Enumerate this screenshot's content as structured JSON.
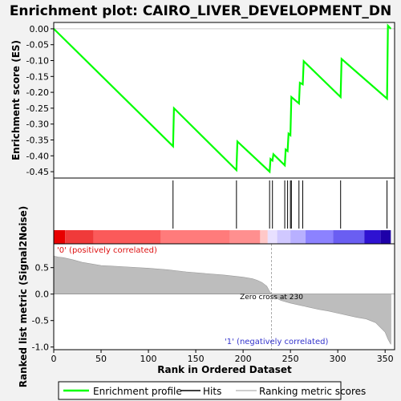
{
  "chart_data": {
    "type": "line",
    "title": "Enrichment plot: CAIRO_LIVER_DEVELOPMENT_DN",
    "xlabel": "Rank in Ordered Dataset",
    "top_ylabel": "Enrichment score (ES)",
    "bottom_ylabel": "Ranked list metric (Signal2Noise)",
    "xlim": [
      0,
      360
    ],
    "top_ylim": [
      -0.47,
      0.02
    ],
    "bottom_ylim": [
      -1.05,
      0.95
    ],
    "x_ticks": [
      0,
      50,
      100,
      150,
      200,
      250,
      300,
      350
    ],
    "top_y_ticks": [
      0.0,
      -0.05,
      -0.1,
      -0.15,
      -0.2,
      -0.25,
      -0.3,
      -0.35,
      -0.4,
      -0.45
    ],
    "top_y_tick_labels": [
      "0.00",
      "-0.05",
      "-0.10",
      "-0.15",
      "-0.20",
      "-0.25",
      "-0.30",
      "-0.35",
      "-0.40",
      "-0.45"
    ],
    "bottom_y_ticks": [
      0.5,
      0.0,
      -0.5,
      -1.0
    ],
    "bottom_y_tick_labels": [
      "0.5",
      "0.0",
      "-0.5",
      "-1.0"
    ],
    "enrichment_profile": {
      "name": "Enrichment profile",
      "color": "#00ff00",
      "x": [
        0,
        126,
        127,
        193,
        194,
        228,
        229,
        231,
        232,
        244,
        245,
        247,
        248,
        250,
        251,
        259,
        260,
        263,
        264,
        303,
        304,
        352,
        353,
        356
      ],
      "y": [
        0.0,
        -0.37,
        -0.25,
        -0.445,
        -0.355,
        -0.45,
        -0.41,
        -0.415,
        -0.395,
        -0.43,
        -0.38,
        -0.385,
        -0.33,
        -0.335,
        -0.215,
        -0.235,
        -0.17,
        -0.175,
        -0.102,
        -0.215,
        -0.095,
        -0.22,
        0.01,
        0.0
      ]
    },
    "hits": {
      "name": "Hits",
      "x": [
        126,
        193,
        228,
        231,
        244,
        247,
        250,
        251,
        259,
        263,
        303,
        352
      ]
    },
    "ranking_metric": {
      "name": "Ranking metric scores",
      "x": [
        0,
        5,
        10,
        20,
        30,
        40,
        50,
        60,
        80,
        100,
        120,
        140,
        160,
        180,
        200,
        210,
        215,
        220,
        225,
        228,
        230,
        232,
        240,
        250,
        260,
        270,
        280,
        290,
        300,
        310,
        320,
        330,
        340,
        345,
        350,
        353,
        356
      ],
      "y": [
        0.72,
        0.7,
        0.69,
        0.65,
        0.6,
        0.57,
        0.54,
        0.53,
        0.51,
        0.49,
        0.46,
        0.42,
        0.39,
        0.36,
        0.32,
        0.29,
        0.26,
        0.22,
        0.15,
        0.05,
        0.0,
        -0.05,
        -0.12,
        -0.17,
        -0.21,
        -0.25,
        -0.29,
        -0.32,
        -0.36,
        -0.4,
        -0.44,
        -0.47,
        -0.54,
        -0.63,
        -0.72,
        -0.85,
        -0.95
      ]
    },
    "zero_cross": 230,
    "annotations": {
      "positive": "'0' (positively correlated)",
      "negative": "'1' (negatively correlated)",
      "zero_cross": "Zero cross at 230"
    },
    "color_bar": {
      "segments": [
        {
          "from": 0,
          "to": 12,
          "color": "#e80000"
        },
        {
          "from": 12,
          "to": 42,
          "color": "#f03a3a"
        },
        {
          "from": 42,
          "to": 113,
          "color": "#fb5a5a"
        },
        {
          "from": 113,
          "to": 186,
          "color": "#ff7b7b"
        },
        {
          "from": 186,
          "to": 218,
          "color": "#ff8f8f"
        },
        {
          "from": 218,
          "to": 226,
          "color": "#ffc8c8"
        },
        {
          "from": 226,
          "to": 236,
          "color": "#e8e0ff"
        },
        {
          "from": 236,
          "to": 250,
          "color": "#d0c8ff"
        },
        {
          "from": 250,
          "to": 266,
          "color": "#b8b0ff"
        },
        {
          "from": 266,
          "to": 295,
          "color": "#8c82ff"
        },
        {
          "from": 295,
          "to": 328,
          "color": "#6a5ef2"
        },
        {
          "from": 328,
          "to": 345,
          "color": "#2e12d2"
        },
        {
          "from": 345,
          "to": 356,
          "color": "#1e00a8"
        }
      ]
    },
    "legend_position": "bottom"
  }
}
